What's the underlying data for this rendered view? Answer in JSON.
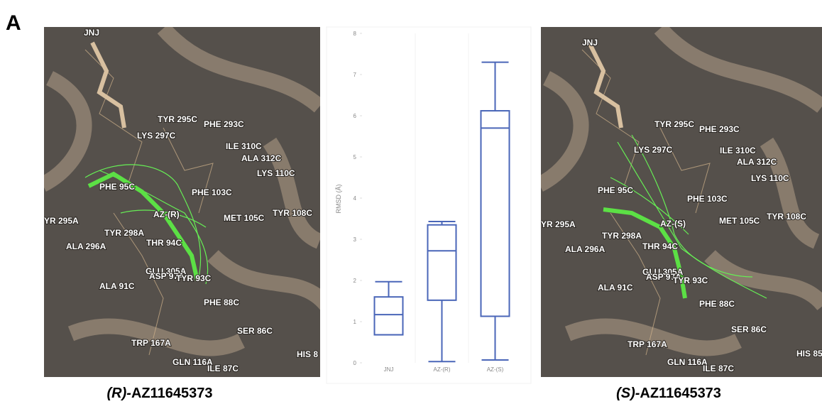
{
  "panel_label": "A",
  "left_panel": {
    "labels": [
      "JNJ",
      "TYR 295C",
      "PHE 293C",
      "LYS 297C",
      "ILE 310C",
      "ALA 312C",
      "LYS 110C",
      "PHE 95C",
      "PHE 103C",
      "AZ-(R)",
      "MET 105C",
      "TYR 108C",
      "YR 295A",
      "TYR 298A",
      "ALA 296A",
      "THR 94C",
      "GLU 305A",
      "ASP 97A",
      "ALA 91C",
      "TYR 93C",
      "PHE 88C",
      "SER 86C",
      "TRP 167A",
      "GLN 116A",
      "ILE 87C",
      "HIS 8"
    ],
    "caption": {
      "prefix": "(R)-",
      "name": "AZ11645373"
    }
  },
  "right_panel": {
    "labels": [
      "JNJ",
      "TYR 295C",
      "PHE 293C",
      "LYS 297C",
      "ILE 310C",
      "ALA 312C",
      "LYS 110C",
      "PHE 95C",
      "PHE 103C",
      "AZ-(S)",
      "MET 105C",
      "TYR 108C",
      "YR 295A",
      "TYR 298A",
      "ALA 296A",
      "THR 94C",
      "GLU 305A",
      "ASP 97A",
      "ALA 91C",
      "TYR 93C",
      "PHE 88C",
      "SER 86C",
      "TRP 167A",
      "GLN 116A",
      "ILE 87C",
      "HIS 85"
    ],
    "caption": {
      "prefix": "(S)-",
      "name": "AZ11645373"
    }
  },
  "chart_data": {
    "type": "box",
    "y_label": "RMSD (Å)",
    "color": "#4a66b8",
    "categories": [
      "JNJ",
      "AZ-(R)",
      "AZ-(S)"
    ],
    "min": [
      0.68,
      0.03,
      0.07
    ],
    "q1": [
      0.68,
      1.52,
      1.13
    ],
    "median": [
      1.17,
      2.72,
      5.7
    ],
    "q3": [
      1.6,
      3.35,
      6.12
    ],
    "max": [
      1.97,
      3.43,
      7.3
    ],
    "ylim": [
      0,
      8
    ],
    "yticks": [
      0,
      1,
      2,
      3,
      4,
      5,
      6,
      7,
      8
    ],
    "grid": false
  }
}
